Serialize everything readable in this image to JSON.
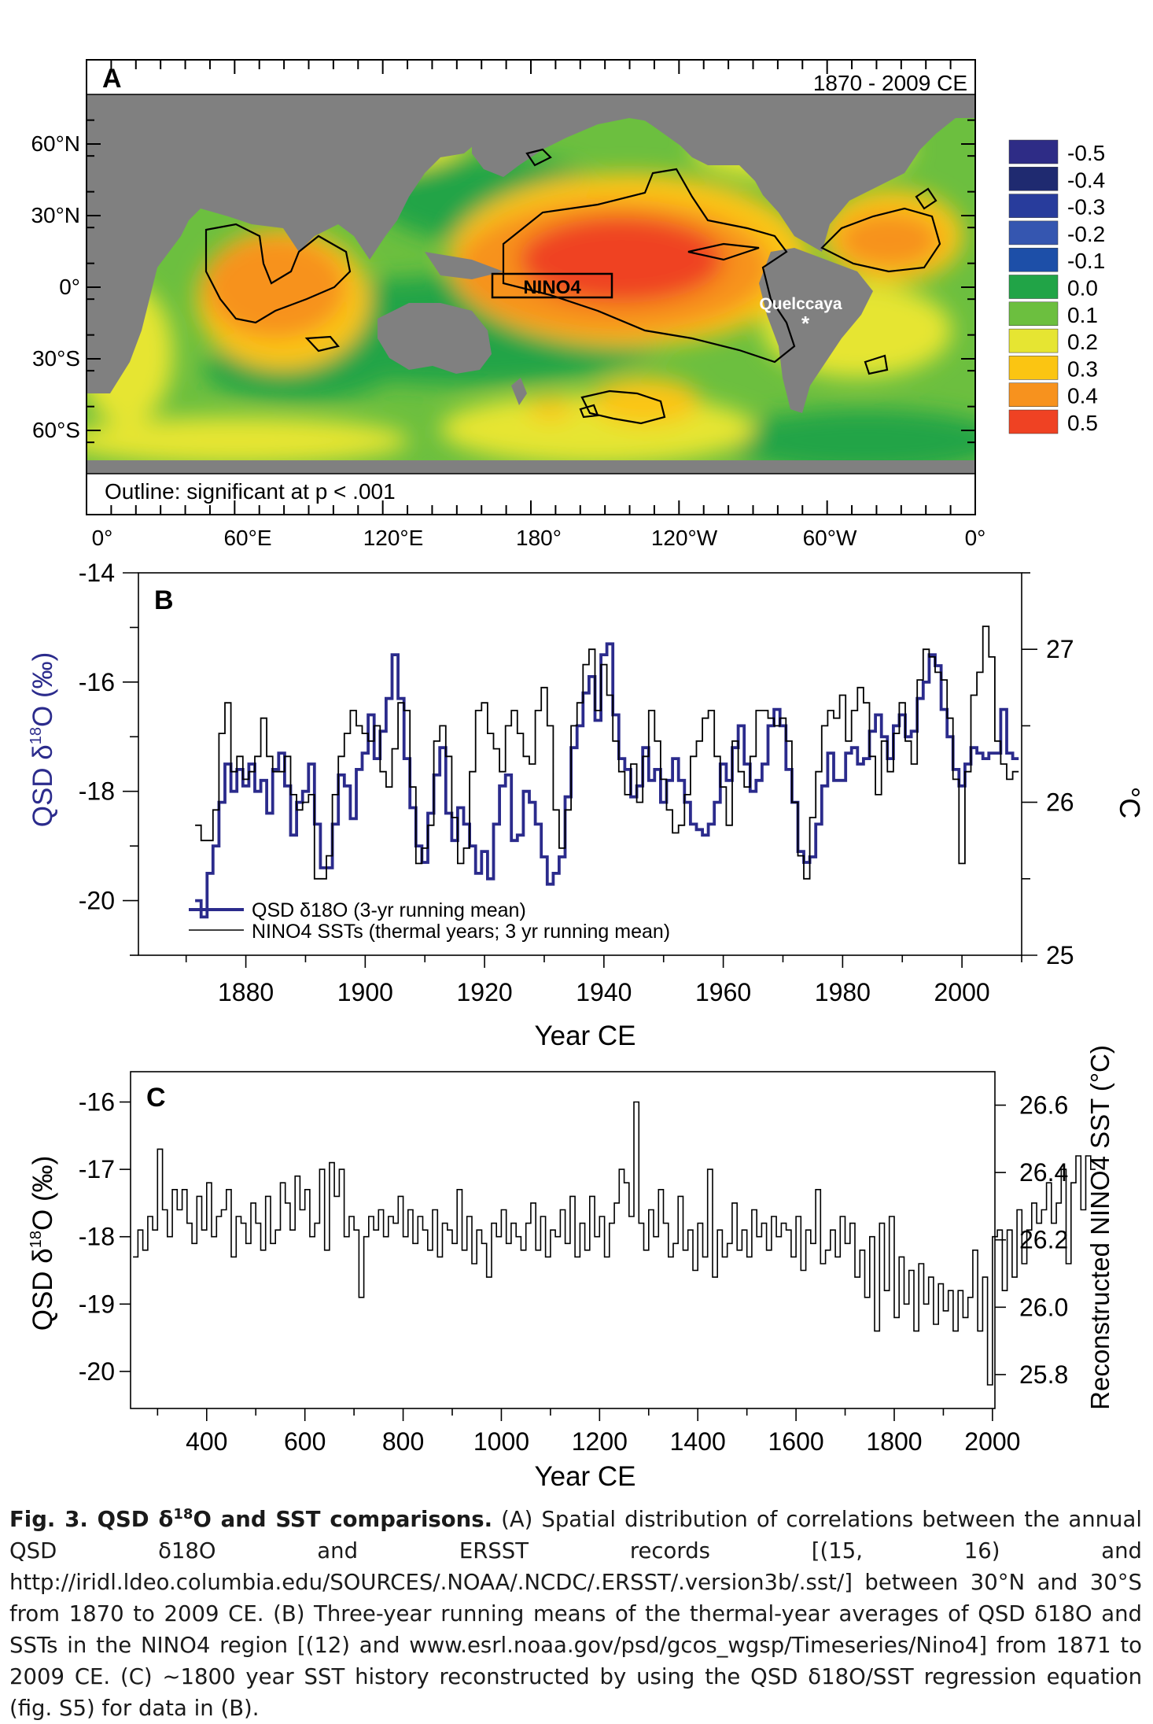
{
  "chart_data": [
    {
      "type": "heatmap",
      "panel_label": "A",
      "period_label": "1870 - 2009 CE",
      "note": "Outline: significant at p < .001",
      "x_ticks": [
        "0°",
        "60°E",
        "120°E",
        "180°",
        "120°W",
        "60°W",
        "0°"
      ],
      "y_ticks": [
        "60°N",
        "30°N",
        "0°",
        "30°S",
        "60°S"
      ],
      "region_label": "NINO4",
      "site_label": "Quelccaya",
      "site_marker": "*",
      "colorbar": [
        {
          "value": "-0.5",
          "color": "#2e2c86"
        },
        {
          "value": "-0.4",
          "color": "#1f2a70"
        },
        {
          "value": "-0.3",
          "color": "#283c9c"
        },
        {
          "value": "-0.2",
          "color": "#3556b0"
        },
        {
          "value": "-0.1",
          "color": "#1d4fa8"
        },
        {
          "value": "0.0",
          "color": "#21a447"
        },
        {
          "value": "0.1",
          "color": "#6cbf3f"
        },
        {
          "value": "0.2",
          "color": "#e6e532"
        },
        {
          "value": "0.3",
          "color": "#fbc512"
        },
        {
          "value": "0.4",
          "color": "#f7921e"
        },
        {
          "value": "0.5",
          "color": "#ef4223"
        }
      ],
      "land_color": "#808080"
    },
    {
      "type": "line",
      "panel_label": "B",
      "xlabel": "Year CE",
      "ylabel_left": "QSD δ18O (‰)",
      "ylabel_right": "°C",
      "x_ticks": [
        1880,
        1900,
        1920,
        1940,
        1960,
        1980,
        2000
      ],
      "y_left_ticks": [
        -14,
        -16,
        -18,
        -20
      ],
      "y_right_ticks": [
        25,
        26,
        27
      ],
      "xlim": [
        1862,
        2010
      ],
      "ylim_left": [
        -21,
        -14
      ],
      "ylim_right": [
        25,
        27.5
      ],
      "series": [
        {
          "name": "QSD δ18O (3-yr running mean)",
          "color": "#2b2b8c",
          "axis": "left",
          "x": [
            1872,
            1873,
            1874,
            1875,
            1876,
            1877,
            1878,
            1879,
            1880,
            1881,
            1882,
            1883,
            1884,
            1885,
            1886,
            1887,
            1888,
            1889,
            1890,
            1891,
            1892,
            1893,
            1894,
            1895,
            1896,
            1897,
            1898,
            1899,
            1900,
            1901,
            1902,
            1903,
            1904,
            1905,
            1906,
            1907,
            1908,
            1909,
            1910,
            1911,
            1912,
            1913,
            1914,
            1915,
            1916,
            1917,
            1918,
            1919,
            1920,
            1921,
            1922,
            1923,
            1924,
            1925,
            1926,
            1927,
            1928,
            1929,
            1930,
            1931,
            1932,
            1933,
            1934,
            1935,
            1936,
            1937,
            1938,
            1939,
            1940,
            1941,
            1942,
            1943,
            1944,
            1945,
            1946,
            1947,
            1948,
            1949,
            1950,
            1951,
            1952,
            1953,
            1954,
            1955,
            1956,
            1957,
            1958,
            1959,
            1960,
            1961,
            1962,
            1963,
            1964,
            1965,
            1966,
            1967,
            1968,
            1969,
            1970,
            1971,
            1972,
            1973,
            1974,
            1975,
            1976,
            1977,
            1978,
            1979,
            1980,
            1981,
            1982,
            1983,
            1984,
            1985,
            1986,
            1987,
            1988,
            1989,
            1990,
            1991,
            1992,
            1993,
            1994,
            1995,
            1996,
            1997,
            1998,
            1999,
            2000,
            2001,
            2002,
            2003,
            2004,
            2005,
            2006,
            2007,
            2008,
            2009
          ],
          "values": [
            -20.0,
            -20.3,
            -19.5,
            -19.0,
            -18.2,
            -17.5,
            -18.0,
            -17.6,
            -17.9,
            -17.5,
            -18.0,
            -17.8,
            -18.4,
            -17.6,
            -17.3,
            -17.9,
            -18.8,
            -18.2,
            -18.0,
            -17.5,
            -18.6,
            -19.4,
            -19.4,
            -18.6,
            -17.7,
            -17.9,
            -18.5,
            -17.6,
            -17.3,
            -16.6,
            -17.4,
            -16.9,
            -16.3,
            -15.5,
            -16.3,
            -17.4,
            -18.3,
            -19.0,
            -19.3,
            -18.4,
            -17.7,
            -17.2,
            -18.4,
            -18.9,
            -18.3,
            -18.6,
            -19.0,
            -19.5,
            -19.1,
            -19.6,
            -18.6,
            -17.9,
            -17.7,
            -18.9,
            -18.8,
            -18.0,
            -18.2,
            -18.6,
            -19.2,
            -19.7,
            -19.5,
            -19.2,
            -18.1,
            -17.2,
            -16.8,
            -16.2,
            -15.9,
            -16.7,
            -15.5,
            -15.3,
            -16.6,
            -17.4,
            -17.6,
            -18.1,
            -17.9,
            -17.2,
            -17.8,
            -17.6,
            -18.2,
            -17.8,
            -17.4,
            -17.8,
            -18.2,
            -18.6,
            -18.7,
            -18.8,
            -18.6,
            -18.2,
            -17.5,
            -17.8,
            -17.2,
            -16.8,
            -17.5,
            -18.0,
            -17.8,
            -17.5,
            -16.8,
            -16.5,
            -16.8,
            -17.6,
            -18.2,
            -19.1,
            -19.3,
            -19.2,
            -18.6,
            -17.9,
            -17.3,
            -17.8,
            -17.8,
            -17.3,
            -17.2,
            -17.5,
            -17.4,
            -16.9,
            -16.6,
            -17.0,
            -17.4,
            -16.8,
            -16.6,
            -17.0,
            -16.9,
            -16.3,
            -16.0,
            -15.5,
            -15.7,
            -16.5,
            -17.0,
            -17.6,
            -17.9,
            -17.5,
            -17.2,
            -17.3,
            -17.4,
            -17.3,
            -17.3,
            -16.5,
            -17.3,
            -17.4
          ]
        },
        {
          "name": "NINO4 SSTs (thermal years; 3 yr running mean)",
          "color": "#000000",
          "axis": "right",
          "x": [
            1872,
            1873,
            1874,
            1875,
            1876,
            1877,
            1878,
            1879,
            1880,
            1881,
            1882,
            1883,
            1884,
            1885,
            1886,
            1887,
            1888,
            1889,
            1890,
            1891,
            1892,
            1893,
            1894,
            1895,
            1896,
            1897,
            1898,
            1899,
            1900,
            1901,
            1902,
            1903,
            1904,
            1905,
            1906,
            1907,
            1908,
            1909,
            1910,
            1911,
            1912,
            1913,
            1914,
            1915,
            1916,
            1917,
            1918,
            1919,
            1920,
            1921,
            1922,
            1923,
            1924,
            1925,
            1926,
            1927,
            1928,
            1929,
            1930,
            1931,
            1932,
            1933,
            1934,
            1935,
            1936,
            1937,
            1938,
            1939,
            1940,
            1941,
            1942,
            1943,
            1944,
            1945,
            1946,
            1947,
            1948,
            1949,
            1950,
            1951,
            1952,
            1953,
            1954,
            1955,
            1956,
            1957,
            1958,
            1959,
            1960,
            1961,
            1962,
            1963,
            1964,
            1965,
            1966,
            1967,
            1968,
            1969,
            1970,
            1971,
            1972,
            1973,
            1974,
            1975,
            1976,
            1977,
            1978,
            1979,
            1980,
            1981,
            1982,
            1983,
            1984,
            1985,
            1986,
            1987,
            1988,
            1989,
            1990,
            1991,
            1992,
            1993,
            1994,
            1995,
            1996,
            1997,
            1998,
            1999,
            2000,
            2001,
            2002,
            2003,
            2004,
            2005,
            2006,
            2007,
            2008,
            2009
          ],
          "values": [
            25.85,
            25.75,
            25.75,
            25.95,
            26.45,
            26.65,
            26.2,
            26.3,
            26.15,
            26.2,
            26.3,
            26.55,
            26.3,
            26.2,
            26.2,
            26.3,
            26.05,
            25.95,
            26.0,
            26.05,
            25.5,
            25.5,
            25.65,
            26.05,
            26.3,
            26.45,
            26.6,
            26.5,
            26.45,
            26.4,
            26.5,
            26.2,
            26.1,
            26.35,
            26.65,
            26.6,
            26.1,
            25.6,
            25.7,
            25.85,
            26.4,
            26.5,
            26.3,
            25.9,
            25.6,
            25.7,
            26.2,
            26.6,
            26.65,
            26.45,
            26.35,
            26.2,
            26.5,
            26.6,
            26.45,
            26.3,
            26.25,
            26.6,
            26.75,
            26.5,
            25.95,
            25.7,
            25.95,
            26.5,
            26.65,
            26.9,
            27.0,
            26.6,
            26.9,
            26.7,
            26.4,
            26.2,
            26.05,
            26.25,
            26.0,
            26.3,
            26.6,
            26.4,
            26.15,
            25.95,
            25.8,
            25.85,
            26.05,
            26.3,
            26.4,
            26.55,
            26.6,
            26.3,
            26.1,
            25.85,
            26.4,
            26.2,
            26.1,
            26.3,
            26.6,
            26.6,
            26.55,
            26.5,
            26.55,
            26.4,
            26.0,
            25.65,
            25.5,
            25.9,
            26.2,
            26.5,
            26.6,
            26.55,
            26.7,
            26.4,
            26.6,
            26.75,
            26.65,
            26.3,
            26.05,
            26.4,
            26.2,
            26.45,
            26.65,
            26.4,
            26.25,
            26.8,
            27.0,
            26.95,
            26.85,
            26.8,
            26.55,
            26.15,
            25.6,
            26.2,
            26.7,
            26.85,
            27.15,
            26.95,
            26.4,
            26.25,
            26.15,
            26.2
          ]
        }
      ]
    },
    {
      "type": "line",
      "panel_label": "C",
      "xlabel": "Year CE",
      "ylabel_left": "QSD δ18O (‰)",
      "ylabel_right": "Reconstructed NINO4 SST (°C)",
      "x_ticks": [
        400,
        600,
        800,
        1000,
        1200,
        1400,
        1600,
        1800,
        2000
      ],
      "y_left_ticks": [
        -16,
        -17,
        -18,
        -19,
        -20
      ],
      "y_right_ticks": [
        26.6,
        26.4,
        26.2,
        26.0,
        25.8
      ],
      "xlim": [
        245,
        2005
      ],
      "ylim_left": [
        -20.55,
        -15.55
      ],
      "series": [
        {
          "name": "",
          "color": "#000000",
          "axis": "left",
          "bin_years": 10,
          "x_start": 250,
          "values": [
            -18.3,
            -17.9,
            -18.2,
            -17.7,
            -17.9,
            -16.7,
            -17.6,
            -18.0,
            -17.3,
            -17.6,
            -17.3,
            -17.8,
            -18.1,
            -17.4,
            -17.9,
            -17.2,
            -18.0,
            -17.7,
            -17.6,
            -17.3,
            -18.3,
            -17.7,
            -17.8,
            -18.1,
            -17.5,
            -17.8,
            -18.2,
            -17.4,
            -18.1,
            -17.9,
            -17.2,
            -17.5,
            -17.9,
            -17.1,
            -17.6,
            -17.3,
            -18.0,
            -17.8,
            -17.0,
            -18.2,
            -16.9,
            -17.4,
            -17.0,
            -18.0,
            -17.7,
            -17.9,
            -18.9,
            -18.0,
            -17.7,
            -17.9,
            -17.6,
            -18.0,
            -17.7,
            -17.8,
            -17.4,
            -18.0,
            -17.6,
            -18.1,
            -17.7,
            -17.9,
            -18.2,
            -17.6,
            -18.3,
            -17.8,
            -17.9,
            -18.1,
            -17.3,
            -18.2,
            -17.7,
            -18.4,
            -17.9,
            -18.1,
            -18.6,
            -17.8,
            -18.0,
            -17.6,
            -18.1,
            -17.8,
            -18.0,
            -18.2,
            -17.8,
            -17.5,
            -18.2,
            -17.7,
            -18.3,
            -17.9,
            -18.0,
            -17.6,
            -18.1,
            -17.4,
            -18.3,
            -17.8,
            -18.2,
            -17.4,
            -18.0,
            -17.7,
            -18.3,
            -17.8,
            -17.5,
            -17.0,
            -17.2,
            -17.7,
            -16.0,
            -17.8,
            -18.2,
            -17.6,
            -18.0,
            -17.3,
            -17.8,
            -18.3,
            -18.1,
            -17.4,
            -18.2,
            -17.9,
            -18.5,
            -17.8,
            -18.3,
            -17.0,
            -18.6,
            -17.9,
            -18.3,
            -18.1,
            -17.5,
            -18.2,
            -17.9,
            -18.3,
            -17.6,
            -18.0,
            -17.8,
            -18.2,
            -17.7,
            -18.0,
            -17.8,
            -17.9,
            -18.3,
            -17.7,
            -18.5,
            -17.9,
            -18.1,
            -17.3,
            -18.4,
            -18.2,
            -17.9,
            -18.3,
            -17.7,
            -18.1,
            -17.8,
            -18.6,
            -18.2,
            -18.9,
            -18.0,
            -19.4,
            -17.8,
            -18.8,
            -17.7,
            -19.2,
            -18.3,
            -19.0,
            -18.5,
            -19.4,
            -18.4,
            -19.0,
            -18.6,
            -19.3,
            -18.7,
            -19.1,
            -18.8,
            -19.4,
            -18.8,
            -19.2,
            -18.9,
            -18.2,
            -19.4,
            -18.6,
            -20.2,
            -18.0,
            -17.9,
            -18.8,
            -17.9,
            -18.6,
            -17.6,
            -18.4,
            -17.9,
            -17.5,
            -17.8,
            -17.6,
            -17.2,
            -17.8,
            -17.5,
            -17.0,
            -18.4,
            -17.2,
            -16.8,
            -17.6,
            -16.8,
            -17.0
          ]
        }
      ]
    }
  ],
  "caption": {
    "fig_label": "Fig. 3. QSD δ",
    "fig_sup": "18",
    "fig_title": "O and SST comparisons.",
    "text": "(A) Spatial distribution of correlations between the annual QSD δ18O and ERSST records [(15, 16) and http://iridl.ldeo.columbia.edu/SOURCES/.NOAA/.NCDC/.ERSST/.version3b/.sst/] between 30°N and 30°S from 1870 to 2009 CE. (B) Three-year running means of the thermal-year averages of QSD δ18O and SSTs in the NINO4 region [(12) and www.esrl.noaa.gov/psd/gcos_wgsp/Timeseries/Nino4] from 1871 to 2009 CE. (C) ~1800 year SST history reconstructed by using the QSD δ18O/SST regression equation (fig. S5) for data in (B)."
  }
}
